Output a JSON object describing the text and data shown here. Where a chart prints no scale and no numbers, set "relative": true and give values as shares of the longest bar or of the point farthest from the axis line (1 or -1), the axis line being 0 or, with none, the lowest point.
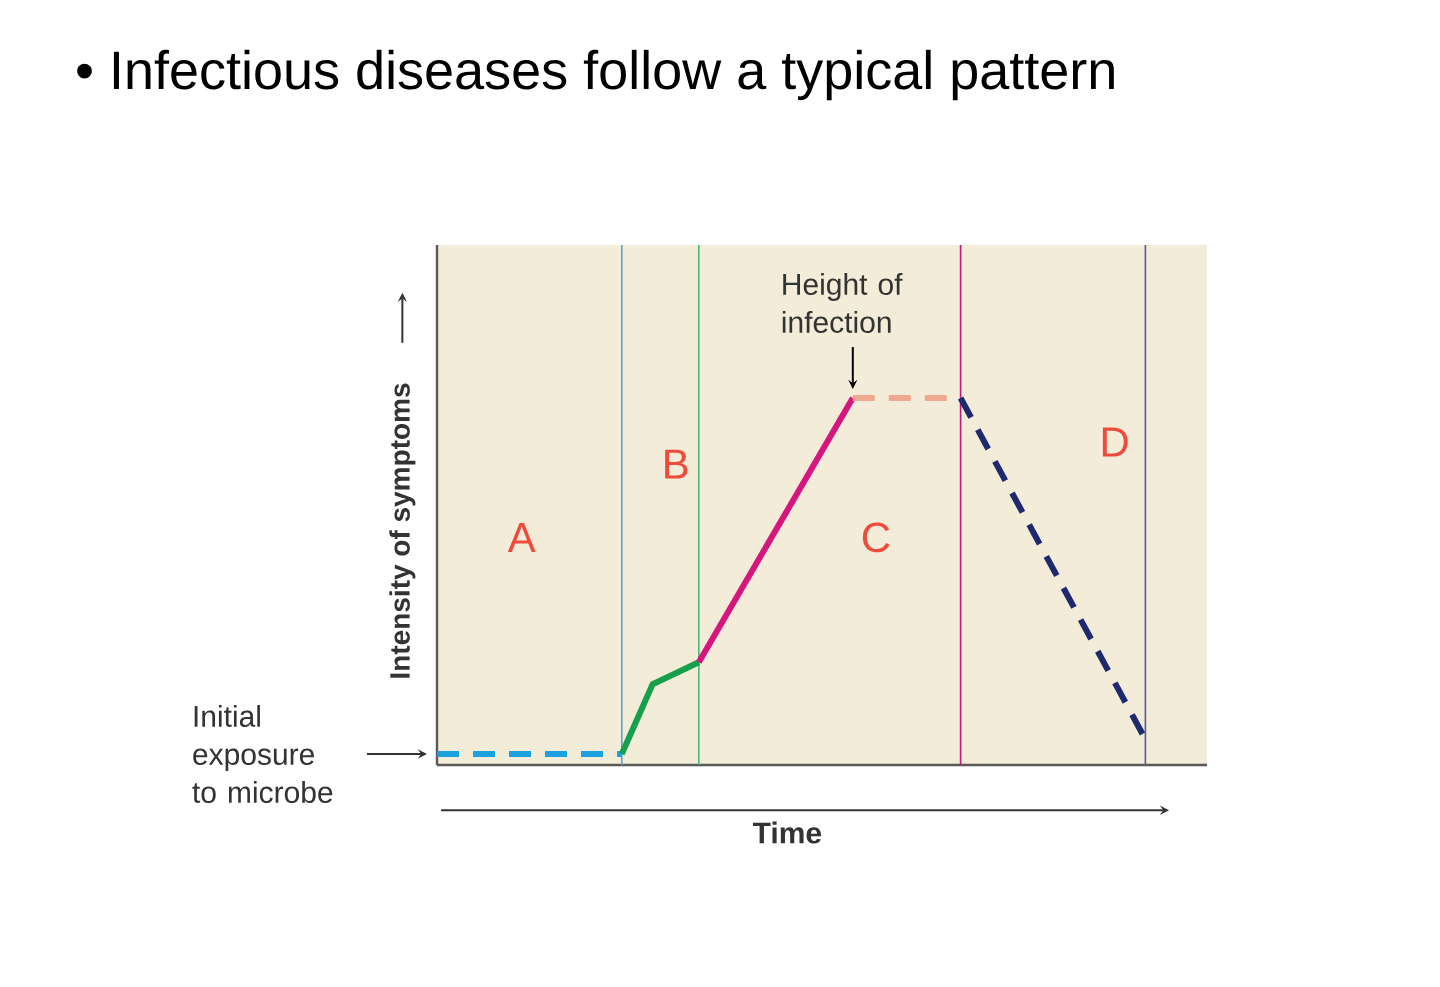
{
  "chart_data": {
    "type": "line",
    "title": "• Infectious diseases follow a typical pattern",
    "xlabel": "Time",
    "ylabel": "Intensity of symptoms",
    "relative": true,
    "categories": [
      null,
      null,
      null,
      null,
      null,
      null,
      null,
      null,
      null,
      null,
      null,
      null,
      null,
      null,
      null,
      null,
      null,
      null,
      null,
      null,
      null,
      null,
      null,
      null,
      null,
      null,
      null,
      null,
      null,
      null,
      null,
      null,
      null,
      null,
      null,
      null,
      null,
      null,
      null,
      null,
      null,
      null,
      null,
      null,
      null,
      null,
      null,
      null,
      null,
      null,
      null
    ],
    "series": [
      {
        "values": [
          0.03,
          null,
          null,
          null,
          null,
          null,
          null,
          null,
          null,
          null,
          null,
          null,
          0.03,
          null,
          null,
          null,
          null,
          null,
          null,
          null,
          null,
          null,
          null,
          null,
          null,
          null,
          null,
          null,
          null,
          null,
          null,
          null,
          null,
          null,
          null,
          null,
          null,
          null,
          null,
          null,
          null,
          null,
          null,
          null,
          null,
          null,
          null,
          null,
          null,
          null,
          null
        ],
        "color": "#1ba1dd",
        "line_style": "dashed"
      },
      {
        "values": [
          null,
          null,
          null,
          null,
          null,
          null,
          null,
          null,
          null,
          null,
          null,
          null,
          0.03,
          null,
          0.22,
          null,
          null,
          0.28,
          null,
          null,
          null,
          null,
          null,
          null,
          null,
          null,
          null,
          null,
          null,
          null,
          null,
          null,
          null,
          null,
          null,
          null,
          null,
          null,
          null,
          null,
          null,
          null,
          null,
          null,
          null,
          null,
          null,
          null,
          null,
          null,
          null
        ],
        "color": "#17a04b",
        "line_style": "solid"
      },
      {
        "values": [
          null,
          null,
          null,
          null,
          null,
          null,
          null,
          null,
          null,
          null,
          null,
          null,
          null,
          null,
          null,
          null,
          null,
          0.28,
          null,
          null,
          null,
          null,
          null,
          null,
          null,
          null,
          null,
          1,
          null,
          null,
          null,
          null,
          null,
          null,
          null,
          null,
          null,
          null,
          null,
          null,
          null,
          null,
          null,
          null,
          null,
          null,
          null,
          null,
          null,
          null,
          null
        ],
        "color": "#d6157f",
        "line_style": "solid"
      },
      {
        "values": [
          null,
          null,
          null,
          null,
          null,
          null,
          null,
          null,
          null,
          null,
          null,
          null,
          null,
          null,
          null,
          null,
          null,
          null,
          null,
          null,
          null,
          null,
          null,
          null,
          null,
          null,
          null,
          1,
          null,
          null,
          null,
          null,
          null,
          null,
          1,
          null,
          null,
          null,
          null,
          null,
          null,
          null,
          null,
          null,
          null,
          null,
          null,
          null,
          null,
          null,
          null
        ],
        "color": "#f0a890",
        "line_style": "dashed"
      },
      {
        "values": [
          null,
          null,
          null,
          null,
          null,
          null,
          null,
          null,
          null,
          null,
          null,
          null,
          null,
          null,
          null,
          null,
          null,
          null,
          null,
          null,
          null,
          null,
          null,
          null,
          null,
          null,
          null,
          null,
          null,
          null,
          null,
          null,
          null,
          null,
          1,
          null,
          null,
          null,
          null,
          null,
          null,
          null,
          null,
          null,
          null,
          null,
          0.07,
          null,
          null,
          null,
          null
        ],
        "color": "#1f2a6e",
        "line_style": "dashed"
      }
    ],
    "annotations": [
      "Height of infection",
      "Initial exposure to microbe",
      "A",
      "B",
      "C",
      "D"
    ]
  }
}
